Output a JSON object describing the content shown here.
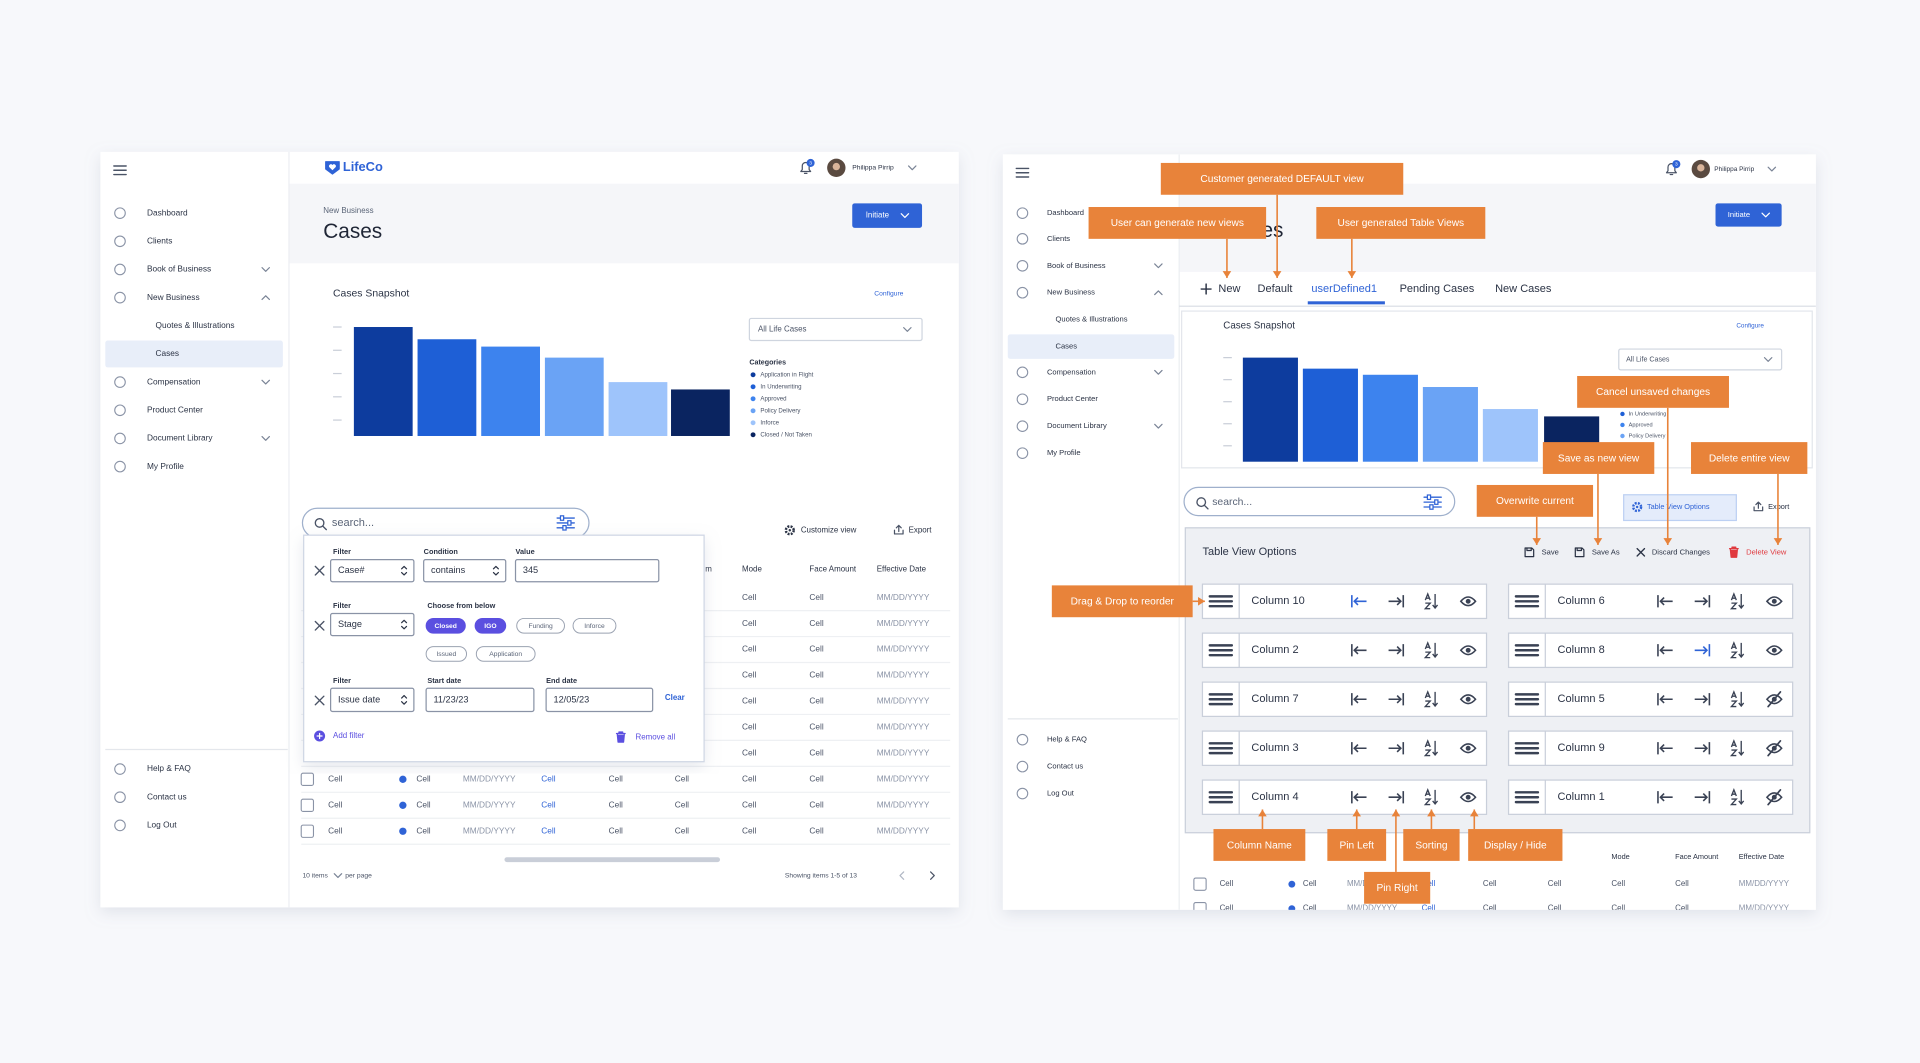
{
  "left": {
    "brand": "LifeCo",
    "badge": "3",
    "user": "Philippa Pirrip",
    "nav": [
      "Dashboard",
      "Clients",
      "Book of Business",
      "New Business",
      "Quotes & Illustrations",
      "Cases",
      "Compensation",
      "Product Center",
      "Document Library",
      "My Profile"
    ],
    "footer_nav": [
      "Help & FAQ",
      "Contact us",
      "Log Out"
    ],
    "breadcrumb": "New Business",
    "title": "Cases",
    "button": "Initiate",
    "snapshot": {
      "title": "Cases Snapshot",
      "link": "Configure",
      "dropdown": "All Life Cases",
      "legend_title": "Categories",
      "legend": [
        "Application in Flight",
        "In Underwriting",
        "Approved",
        "Policy Delivery",
        "Inforce",
        "Closed / Not Taken"
      ]
    },
    "search": "search...",
    "customize": "Customize view",
    "export": "Export",
    "filter": {
      "rows": [
        {
          "labels": [
            "Filter",
            "Condition",
            "Value"
          ],
          "fields": [
            "Case#",
            "contains",
            "345"
          ]
        },
        {
          "labels": [
            "Filter",
            "Choose from below"
          ],
          "fields": [
            "Stage"
          ],
          "chips": [
            {
              "label": "Closed",
              "selected": true
            },
            {
              "label": "IGO",
              "selected": true
            },
            {
              "label": "Funding",
              "selected": false
            },
            {
              "label": "Inforce",
              "selected": false
            },
            {
              "label": "Issued",
              "selected": false
            },
            {
              "label": "Application",
              "selected": false
            }
          ]
        },
        {
          "labels": [
            "Filter",
            "Start date",
            "End date"
          ],
          "fields": [
            "Issue date",
            "11/23/23",
            "12/05/23"
          ],
          "action": "Clear"
        }
      ],
      "add": "Add filter",
      "remove": "Remove all"
    },
    "table": {
      "headers": [
        "m",
        "Mode",
        "Face Amount",
        "Effective Date"
      ],
      "rows": [
        [
          "Cell",
          "Cell",
          "MM/DD/YYYY"
        ],
        [
          "Cell",
          "Cell",
          "MM/DD/YYYY"
        ],
        [
          "Cell",
          "Cell",
          "MM/DD/YYYY"
        ],
        [
          "Cell",
          "Cell",
          "MM/DD/YYYY"
        ],
        [
          "Cell",
          "Cell",
          "MM/DD/YYYY"
        ],
        [
          "Cell",
          "Cell",
          "MM/DD/YYYY"
        ],
        [
          "Cell",
          "Cell",
          "MM/DD/YYYY"
        ],
        [
          "Cell",
          "Cell",
          "MM/DD/YYYY",
          "Cell",
          "Cell",
          "Cell",
          "Cell",
          "Cell",
          "MM/DD/YYYY"
        ],
        [
          "Cell",
          "Cell",
          "MM/DD/YYYY",
          "Cell",
          "Cell",
          "Cell",
          "Cell",
          "Cell",
          "MM/DD/YYYY"
        ],
        [
          "Cell",
          "Cell",
          "MM/DD/YYYY",
          "Cell",
          "Cell",
          "Cell",
          "Cell",
          "Cell",
          "MM/DD/YYYY"
        ]
      ]
    },
    "pagination": {
      "count": "10 items",
      "per_page": "per page",
      "showing": "Showing items 1-5 of 13"
    }
  },
  "right": {
    "badge": "3",
    "user": "Philippa Pirrip",
    "nav": [
      "Dashboard",
      "Clients",
      "Book of Business",
      "New Business",
      "Quotes & Illustrations",
      "Cases",
      "Compensation",
      "Product Center",
      "Document Library",
      "My Profile"
    ],
    "footer_nav": [
      "Help & FAQ",
      "Contact us",
      "Log Out"
    ],
    "title": "Cases",
    "button": "Initiate",
    "tabs": [
      "New",
      "Default",
      "userDefined1",
      "Pending Cases",
      "New Cases"
    ],
    "active_tab": 2,
    "snapshot": {
      "title": "Cases Snapshot",
      "link": "Configure",
      "dropdown": "All Life Cases",
      "legend": [
        "In Underwriting",
        "Approved",
        "Policy Delivery"
      ]
    },
    "search": "search...",
    "options_button": "Table View Options",
    "export": "Export",
    "panel": {
      "title": "Table View Options",
      "actions": [
        "Save",
        "Save As",
        "Discard Changes",
        "Delete View"
      ],
      "columns": [
        {
          "name": "Column 10",
          "pinned": "left",
          "visible": true
        },
        {
          "name": "Column 2",
          "pinned": null,
          "visible": true
        },
        {
          "name": "Column 7",
          "pinned": null,
          "visible": true
        },
        {
          "name": "Column 3",
          "pinned": null,
          "visible": true
        },
        {
          "name": "Column 4",
          "pinned": null,
          "visible": true
        },
        {
          "name": "Column 6",
          "pinned": null,
          "visible": true
        },
        {
          "name": "Column 8",
          "pinned": "right",
          "visible": true
        },
        {
          "name": "Column 5",
          "pinned": null,
          "visible": false
        },
        {
          "name": "Column 9",
          "pinned": null,
          "visible": false
        },
        {
          "name": "Column 1",
          "pinned": null,
          "visible": false
        }
      ]
    },
    "table": {
      "headers": [
        "mium",
        "Mode",
        "Face Amount",
        "Effective Date"
      ],
      "rows": [
        [
          "Cell",
          "Cell",
          "MM/DD/YYYY",
          "Cell",
          "Cell",
          "Cell",
          "Cell",
          "Cell",
          "MM/DD/YYYY"
        ],
        [
          "Cell",
          "Cell",
          "MM/DD/YYYY",
          "Cell",
          "Cell",
          "Cell",
          "Cell",
          "Cell",
          "MM/DD/YYYY"
        ]
      ]
    },
    "callouts": [
      "Customer generated DEFAULT view",
      "User can generate new views",
      "User generated Table Views",
      "Cancel unsaved changes",
      "Save as new view",
      "Delete entire view",
      "Overwrite current",
      "Drag & Drop to reorder",
      "Column Name",
      "Pin Left",
      "Sorting",
      "Display / Hide",
      "Pin Right"
    ]
  }
}
